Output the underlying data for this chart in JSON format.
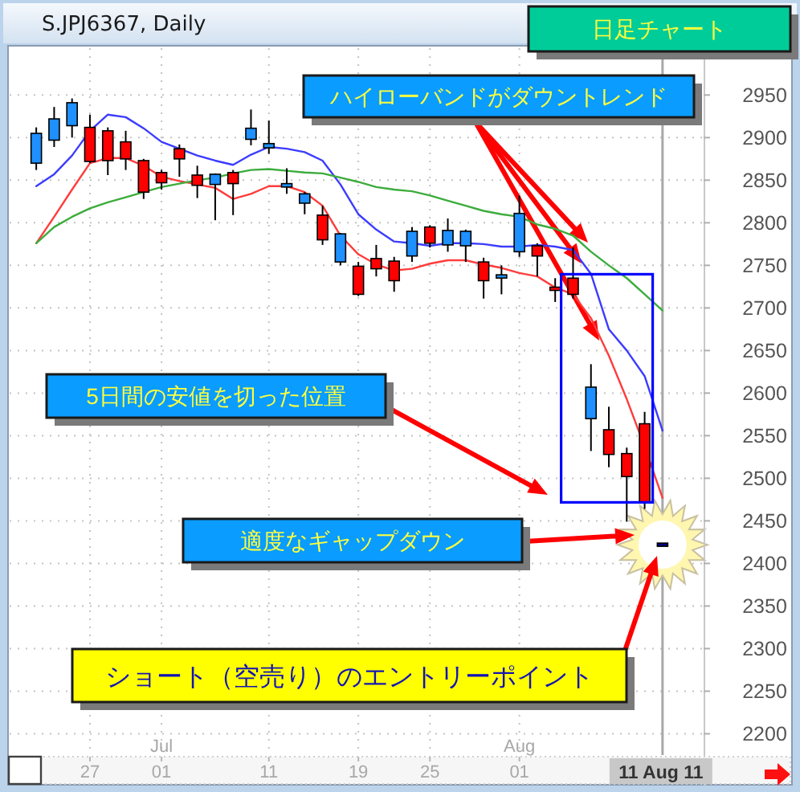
{
  "chart_data": {
    "type": "candlestick",
    "title": "S.JPJ6367, Daily",
    "subtitle": "日足チャート",
    "annotations": [
      "ハイローバンドがダウントレンド",
      "5日間の安値を切った位置",
      "適度なギャップダウン",
      "ショート（空売り）のエントリーポイント"
    ],
    "categories": [
      null,
      null,
      null,
      "27",
      null,
      null,
      null,
      "Jul\n01",
      null,
      null,
      null,
      null,
      null,
      "11",
      null,
      null,
      null,
      null,
      "19",
      null,
      null,
      null,
      "25",
      null,
      null,
      null,
      null,
      "Aug\n01",
      null,
      null,
      null,
      null,
      null,
      null,
      null,
      "11 Aug 11"
    ],
    "ohlc": [
      [
        2870,
        2912,
        2862,
        2905
      ],
      [
        2897,
        2936,
        2889,
        2922
      ],
      [
        2914,
        2946,
        2900,
        2941
      ],
      [
        2912,
        2927,
        2870,
        2872
      ],
      [
        2908,
        2912,
        2856,
        2873
      ],
      [
        2895,
        2908,
        2862,
        2875
      ],
      [
        2873,
        2875,
        2828,
        2836
      ],
      [
        2859,
        2862,
        2839,
        2847
      ],
      [
        2887,
        2892,
        2854,
        2875
      ],
      [
        2856,
        2867,
        2829,
        2844
      ],
      [
        2845,
        2858,
        2803,
        2857
      ],
      [
        2859,
        2862,
        2809,
        2846
      ],
      [
        2898,
        2933,
        2891,
        2911
      ],
      [
        2888,
        2920,
        2881,
        2893
      ],
      [
        2842,
        2864,
        2834,
        2846
      ],
      [
        2823,
        2836,
        2810,
        2834
      ],
      [
        2809,
        2820,
        2774,
        2780
      ],
      [
        2754,
        2788,
        2750,
        2787
      ],
      [
        2749,
        2754,
        2714,
        2716
      ],
      [
        2758,
        2774,
        2737,
        2746
      ],
      [
        2755,
        2760,
        2719,
        2732
      ],
      [
        2761,
        2795,
        2754,
        2790
      ],
      [
        2795,
        2797,
        2771,
        2776
      ],
      [
        2774,
        2805,
        2766,
        2791
      ],
      [
        2773,
        2792,
        2754,
        2790
      ],
      [
        2754,
        2759,
        2711,
        2732
      ],
      [
        2736,
        2750,
        2716,
        2738
      ],
      [
        2766,
        2832,
        2760,
        2811
      ],
      [
        2773,
        2776,
        2737,
        2761
      ],
      [
        2724,
        2735,
        2707,
        2721
      ],
      [
        2735,
        2771,
        2711,
        2716
      ],
      [
        2570,
        2634,
        2532,
        2607
      ],
      [
        2557,
        2584,
        2513,
        2528
      ],
      [
        2529,
        2536,
        2449,
        2502
      ],
      [
        2564,
        2578,
        2464,
        2472
      ],
      [
        2422,
        2423,
        2421,
        2422
      ]
    ],
    "colors": [
      "#1e90ff",
      "#1e90ff",
      "#1e90ff",
      "#ff0000",
      "#ff0000",
      "#ff0000",
      "#ff0000",
      "#ff0000",
      "#ff0000",
      "#ff0000",
      "#1e90ff",
      "#ff0000",
      "#1e90ff",
      "#1e90ff",
      "#1e90ff",
      "#1e90ff",
      "#ff0000",
      "#1e90ff",
      "#ff0000",
      "#ff0000",
      "#ff0000",
      "#1e90ff",
      "#ff0000",
      "#1e90ff",
      "#1e90ff",
      "#ff0000",
      "#1e90ff",
      "#1e90ff",
      "#ff0000",
      "#ff0000",
      "#ff0000",
      "#1e90ff",
      "#ff0000",
      "#ff0000",
      "#ff0000",
      "#000080"
    ],
    "series": [
      {
        "type": "line",
        "color": "#3c3cff",
        "values": [
          2843,
          2857,
          2879,
          2908,
          2927,
          2924,
          2911,
          2895,
          2887,
          2879,
          2873,
          2868,
          2880,
          2889,
          2887,
          2883,
          2873,
          2845,
          2810,
          2792,
          2778,
          2776,
          2773,
          2776,
          2776,
          2775,
          2772,
          2772,
          2774,
          2772,
          2768,
          2740,
          2675,
          2650,
          2620,
          2556
        ]
      },
      {
        "type": "line",
        "color": "#ff3c3c",
        "values": [
          2776,
          2807,
          2839,
          2870,
          2876,
          2876,
          2867,
          2854,
          2849,
          2845,
          2841,
          2828,
          2834,
          2843,
          2843,
          2836,
          2820,
          2785,
          2763,
          2751,
          2744,
          2746,
          2752,
          2756,
          2756,
          2751,
          2747,
          2741,
          2737,
          2724,
          2716,
          2688,
          2644,
          2593,
          2537,
          2477
        ]
      },
      {
        "type": "line",
        "color": "#3cac3c",
        "values": [
          2776,
          2795,
          2807,
          2817,
          2824,
          2830,
          2836,
          2842,
          2846,
          2850,
          2853,
          2858,
          2862,
          2863,
          2861,
          2859,
          2858,
          2853,
          2848,
          2842,
          2839,
          2837,
          2832,
          2826,
          2820,
          2814,
          2810,
          2807,
          2798,
          2793,
          2785,
          2766,
          2750,
          2735,
          2716,
          2697
        ]
      }
    ],
    "ref_lines": [
      {
        "axis": "x",
        "value": "11 Aug 11",
        "color": "#a8a8a8"
      }
    ],
    "ylim": [
      2175,
      3005
    ],
    "yticks": [
      2200,
      2250,
      2300,
      2350,
      2400,
      2450,
      2500,
      2550,
      2600,
      2650,
      2700,
      2750,
      2800,
      2850,
      2900,
      2950
    ],
    "grid": true
  }
}
